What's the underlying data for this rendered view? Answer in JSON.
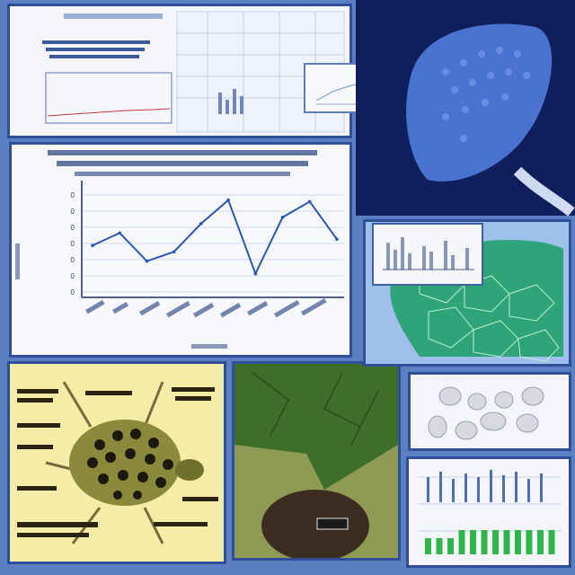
{
  "line_panel": {
    "axis_ticks": [
      "0",
      "0",
      "0",
      "0",
      "0",
      "0",
      "0"
    ],
    "caption": ""
  },
  "leaf_panel": {
    "tag": ""
  },
  "colors": {
    "frame_blue": "#2f4f9a",
    "background_blue": "#5b7fc2",
    "bug_paper": "#f5eca8",
    "leaf_green": "#3d6a2c",
    "scan_navy": "#0f1f5c",
    "mesh_green": "#2fa37a"
  },
  "chart_data": [
    {
      "type": "line",
      "series": [
        {
          "values": [
            3.2,
            4.0,
            2.2,
            2.8,
            4.6,
            6.1,
            1.4,
            5.0,
            6.0,
            3.6
          ]
        }
      ]
    },
    {
      "type": "bar",
      "series": [
        {
          "values": [
            2,
            2,
            2,
            3,
            3,
            3,
            3,
            3,
            3,
            3,
            3,
            3
          ]
        }
      ]
    }
  ]
}
